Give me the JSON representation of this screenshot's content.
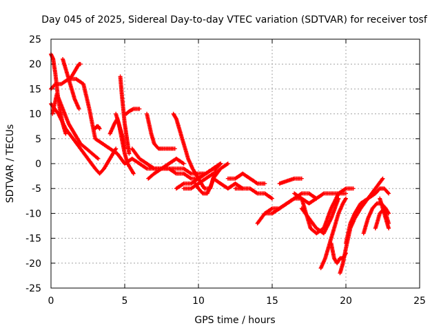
{
  "chart_data": {
    "type": "scatter",
    "title": "Day 045 of 2025, Sidereal Day-to-day VTEC variation (SDTVAR) for receiver tosf",
    "xlabel": "GPS time / hours",
    "ylabel": "SDTVAR / TECUs",
    "xlim": [
      0,
      25
    ],
    "ylim": [
      -25,
      25
    ],
    "xticks": [
      0,
      5,
      10,
      15,
      20,
      25
    ],
    "yticks": [
      25,
      20,
      15,
      10,
      5,
      0,
      -5,
      -10,
      -15,
      -20,
      -25
    ],
    "grid": true,
    "marker": "plus",
    "color": "#ff0000",
    "series": [
      {
        "name": "track-01",
        "x": [
          0.0,
          0.15,
          0.3,
          0.45,
          0.6,
          0.8,
          1.0
        ],
        "y": [
          22,
          21,
          18,
          14,
          11,
          8,
          6
        ]
      },
      {
        "name": "track-02",
        "x": [
          0.0,
          0.3,
          0.7,
          1.2,
          1.7,
          2.2,
          2.6,
          3.0,
          3.5,
          4.0,
          4.5,
          5.0,
          5.5,
          6.0,
          6.5,
          7.0,
          7.5,
          8.0,
          8.5,
          9.0,
          9.5,
          10.0,
          10.5,
          11.0,
          11.5
        ],
        "y": [
          15,
          16,
          16,
          17,
          17,
          16,
          11,
          5,
          4,
          3,
          2,
          0,
          1,
          0,
          -1,
          -1,
          -1,
          -1,
          -1,
          -1,
          -2,
          -2,
          -2,
          -1,
          0
        ]
      },
      {
        "name": "track-03",
        "x": [
          0.0,
          0.5,
          1.0,
          1.5,
          2.0,
          2.5,
          3.0,
          3.3,
          3.6,
          4.0,
          4.4
        ],
        "y": [
          12,
          10,
          7,
          5,
          3,
          1,
          -1,
          -2,
          -1,
          1,
          3
        ]
      },
      {
        "name": "track-04",
        "x": [
          0.1,
          0.4,
          0.8,
          1.2,
          1.6,
          2.0,
          2.4,
          2.8,
          3.2
        ],
        "y": [
          10,
          14,
          11,
          8,
          6,
          4,
          3,
          2,
          1
        ]
      },
      {
        "name": "track-05",
        "x": [
          0.8,
          1.0,
          1.3,
          1.6,
          1.9
        ],
        "y": [
          21,
          19,
          16,
          13,
          11
        ]
      },
      {
        "name": "track-06",
        "x": [
          1.3,
          1.5,
          1.7,
          1.9,
          2.0
        ],
        "y": [
          17,
          18,
          19,
          20,
          20
        ]
      },
      {
        "name": "track-07",
        "x": [
          3.0,
          3.1,
          3.2,
          3.3
        ],
        "y": [
          7,
          7.5,
          7.5,
          7
        ]
      },
      {
        "name": "track-08",
        "x": [
          4.0,
          4.3,
          4.5,
          4.7,
          4.9,
          5.0
        ],
        "y": [
          6,
          8,
          9,
          7,
          5,
          3
        ]
      },
      {
        "name": "track-09",
        "x": [
          4.4,
          4.6,
          4.8,
          5.0,
          5.2,
          5.4,
          5.6
        ],
        "y": [
          10,
          8,
          5,
          2,
          0,
          -1,
          -2
        ]
      },
      {
        "name": "track-10",
        "x": [
          4.7,
          4.8,
          4.9,
          5.0,
          5.1,
          5.2,
          5.3
        ],
        "y": [
          17.5,
          14,
          11,
          8,
          6,
          4,
          2
        ]
      },
      {
        "name": "track-11",
        "x": [
          5.1,
          5.3,
          5.6,
          6.0
        ],
        "y": [
          10,
          10.5,
          11,
          11
        ]
      },
      {
        "name": "track-12",
        "x": [
          5.5,
          6.0,
          6.5,
          7.0,
          7.5,
          8.0,
          8.5,
          9.0,
          9.5,
          10.0,
          10.5,
          11.0,
          11.5
        ],
        "y": [
          3,
          1,
          0,
          -1,
          -1,
          -1,
          -2,
          -2,
          -3,
          -3,
          -2,
          -1,
          0
        ]
      },
      {
        "name": "track-13",
        "x": [
          6.5,
          6.8,
          7.0,
          7.3,
          7.6,
          8.0,
          8.4
        ],
        "y": [
          10,
          6,
          4,
          3,
          3,
          3,
          3
        ]
      },
      {
        "name": "track-14",
        "x": [
          6.6,
          7.0,
          7.5,
          8.0,
          8.5,
          9.0
        ],
        "y": [
          -3,
          -2,
          -1,
          0,
          1,
          0
        ]
      },
      {
        "name": "track-15",
        "x": [
          8.3,
          8.5,
          8.7,
          9.0,
          9.3,
          9.6,
          10.0,
          10.4,
          10.8,
          11.0,
          11.5,
          12.0
        ],
        "y": [
          10,
          9,
          7,
          4,
          1,
          -1,
          -3,
          -5,
          -5,
          -3,
          -1,
          0
        ]
      },
      {
        "name": "track-16",
        "x": [
          8.5,
          9.0,
          9.5,
          10.0,
          10.5,
          11.0,
          11.5
        ],
        "y": [
          -5,
          -4,
          -4,
          -3,
          -2,
          -1,
          0
        ]
      },
      {
        "name": "track-17",
        "x": [
          9.0,
          9.5,
          10.0,
          10.5,
          11.0
        ],
        "y": [
          -5,
          -5,
          -4,
          -3,
          -2
        ]
      },
      {
        "name": "track-18",
        "x": [
          9.8,
          10.0,
          10.3,
          10.6,
          10.9,
          11.2,
          11.5
        ],
        "y": [
          -4,
          -5,
          -6,
          -6,
          -4,
          -1,
          0
        ]
      },
      {
        "name": "track-19",
        "x": [
          12.0,
          12.5,
          13.0,
          13.5,
          14.0,
          14.5
        ],
        "y": [
          -3,
          -3,
          -2,
          -3,
          -4,
          -4
        ]
      },
      {
        "name": "track-20",
        "x": [
          11.0,
          11.5,
          12.0,
          12.5,
          13.0
        ],
        "y": [
          -3,
          -4,
          -5,
          -4,
          -5
        ]
      },
      {
        "name": "track-21",
        "x": [
          12.5,
          13.0,
          13.5,
          14.0,
          14.5,
          15.0
        ],
        "y": [
          -5,
          -5,
          -5,
          -6,
          -6,
          -7
        ]
      },
      {
        "name": "track-22",
        "x": [
          14.0,
          14.5,
          15.0,
          15.5,
          16.0,
          16.5,
          17.0,
          17.5,
          18.0,
          18.5,
          19.0,
          19.5,
          20.0
        ],
        "y": [
          -12,
          -10,
          -9,
          -9,
          -8,
          -7,
          -6,
          -6,
          -7,
          -6,
          -6,
          -6,
          -6
        ]
      },
      {
        "name": "track-23",
        "x": [
          14.5,
          15.0,
          15.5,
          16.0,
          16.5,
          17.0,
          17.5,
          18.0
        ],
        "y": [
          -10,
          -10,
          -9,
          -8,
          -7,
          -7,
          -8,
          -7
        ]
      },
      {
        "name": "track-24",
        "x": [
          15.5,
          16.0,
          16.5,
          17.0
        ],
        "y": [
          -4,
          -3.5,
          -3,
          -3
        ]
      },
      {
        "name": "track-25",
        "x": [
          16.5,
          17.0,
          17.3,
          17.6,
          18.0,
          18.5,
          19.0,
          19.5,
          20.0,
          20.5
        ],
        "y": [
          -6,
          -7,
          -10,
          -13,
          -14,
          -13,
          -9,
          -6,
          -5,
          -5
        ]
      },
      {
        "name": "track-26",
        "x": [
          17.0,
          17.5,
          18.0,
          18.5,
          19.0,
          19.5
        ],
        "y": [
          -9,
          -11,
          -13,
          -14,
          -11,
          -7
        ]
      },
      {
        "name": "track-27",
        "x": [
          18.3,
          18.6,
          18.9,
          19.2,
          19.5,
          19.8,
          20.0
        ],
        "y": [
          -21,
          -19,
          -16,
          -13,
          -10,
          -8,
          -7
        ]
      },
      {
        "name": "track-28",
        "x": [
          19.0,
          19.2,
          19.4,
          19.6,
          19.8,
          20.0
        ],
        "y": [
          -16,
          -19,
          -20,
          -19,
          -19,
          -18
        ]
      },
      {
        "name": "track-29",
        "x": [
          19.6,
          19.8,
          20.0,
          20.3,
          20.6,
          21.0,
          21.5,
          22.0,
          22.5
        ],
        "y": [
          -22,
          -20,
          -17,
          -13,
          -11,
          -9,
          -7,
          -5,
          -3
        ]
      },
      {
        "name": "track-30",
        "x": [
          20.0,
          20.3,
          20.6,
          21.0,
          21.5,
          22.0,
          22.3,
          22.6,
          22.9
        ],
        "y": [
          -16,
          -12,
          -10,
          -8,
          -7,
          -6,
          -5,
          -5,
          -6
        ]
      },
      {
        "name": "track-31",
        "x": [
          21.2,
          21.5,
          21.8,
          22.1,
          22.4,
          22.7,
          22.9
        ],
        "y": [
          -14,
          -11,
          -9,
          -8,
          -8,
          -9,
          -10
        ]
      },
      {
        "name": "track-32",
        "x": [
          22.0,
          22.3,
          22.6,
          22.9
        ],
        "y": [
          -13,
          -10,
          -9,
          -12
        ]
      },
      {
        "name": "track-33",
        "x": [
          22.3,
          22.5,
          22.7,
          22.9
        ],
        "y": [
          -7,
          -9,
          -11,
          -13
        ]
      }
    ]
  }
}
